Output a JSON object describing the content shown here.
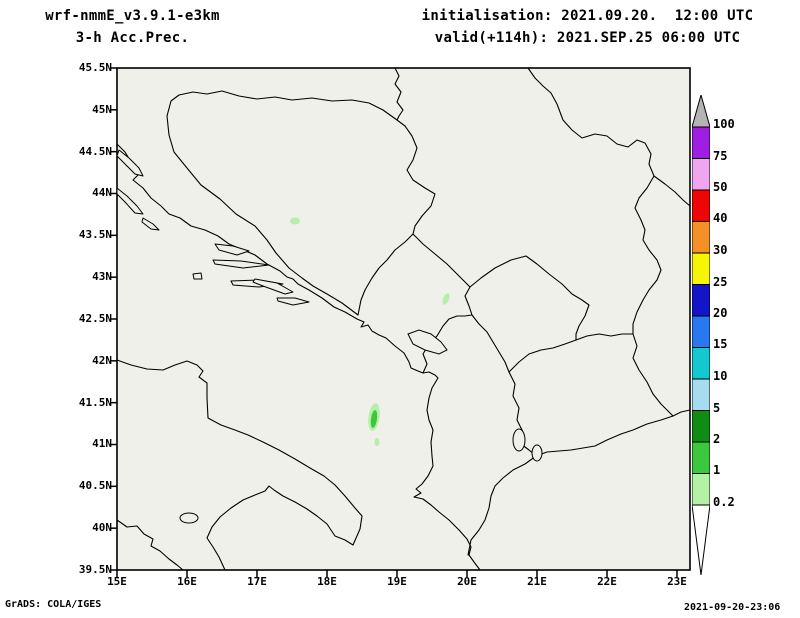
{
  "header": {
    "model_title": "wrf-nmmE_v3.9.1-e3km",
    "product_title": "3-h Acc.Prec.",
    "init_line": "initialisation: 2021.09.20.  12:00 UTC",
    "valid_line": "valid(+114h): 2021.SEP.25 06:00 UTC"
  },
  "axes": {
    "lat_labels": [
      "45.5N",
      "45N",
      "44.5N",
      "44N",
      "43.5N",
      "43N",
      "42.5N",
      "42N",
      "41.5N",
      "41N",
      "40.5N",
      "40N",
      "39.5N"
    ],
    "lon_labels": [
      "15E",
      "16E",
      "17E",
      "18E",
      "19E",
      "20E",
      "21E",
      "22E",
      "23E"
    ]
  },
  "legend": {
    "labels": [
      "100",
      "75",
      "50",
      "40",
      "30",
      "25",
      "20",
      "15",
      "10",
      "5",
      "2",
      "1",
      "0.2"
    ],
    "colors": [
      "#b4b4b4",
      "#a01ee1",
      "#f0a5f0",
      "#f00505",
      "#f58f28",
      "#f5f505",
      "#1414c8",
      "#2878f0",
      "#14c8d2",
      "#a5dcf0",
      "#0f8c14",
      "#3cc83c",
      "#b4f0a5",
      "#ffffff"
    ]
  },
  "footer": {
    "credit": "GrADS: COLA/IGES",
    "timestamp": "2021-09-20-23:06"
  },
  "chart_data": {
    "type": "heatmap",
    "variable": "3-h Acc.Prec.",
    "model": "wrf-nmmE_v3.9.1-e3km",
    "initialisation": "2021.09.20. 12:00 UTC",
    "valid": "valid(+114h) 2021.SEP.25 06:00 UTC",
    "lon_range_deg_east": [
      15,
      23
    ],
    "lat_range_deg_north": [
      39.5,
      45.5
    ],
    "scale_levels": [
      0.2,
      1,
      2,
      5,
      10,
      15,
      20,
      25,
      30,
      40,
      50,
      75,
      100
    ],
    "legend_position": "right",
    "precip_spots": [
      {
        "lon": 17.5,
        "lat": 43.7,
        "value_range": "0.2-1"
      },
      {
        "lon": 19.7,
        "lat": 42.7,
        "value_range": "0.2-1"
      },
      {
        "lon": 18.7,
        "lat": 41.3,
        "value_range": "1-2"
      },
      {
        "lon": 18.7,
        "lat": 40.9,
        "value_range": "0.2-1"
      }
    ]
  }
}
